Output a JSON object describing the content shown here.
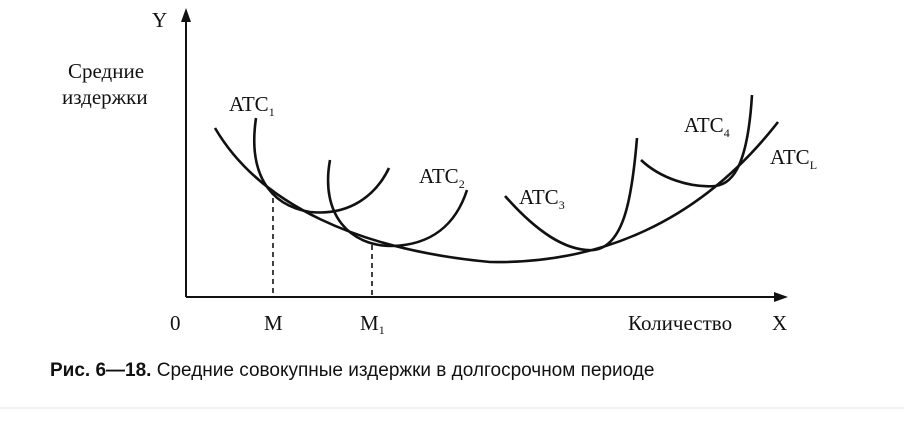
{
  "axes": {
    "y_label": "Y",
    "y_title_line1": "Средние",
    "y_title_line2": "издержки",
    "origin": "0",
    "x_title": "Количество",
    "x_label": "X"
  },
  "ticks": [
    {
      "label": "M"
    },
    {
      "label": "M",
      "sub": "1"
    }
  ],
  "curves": [
    {
      "label": "ATC",
      "sub": "1"
    },
    {
      "label": "ATC",
      "sub": "2"
    },
    {
      "label": "ATC",
      "sub": "3"
    },
    {
      "label": "ATC",
      "sub": "4"
    },
    {
      "label": "ATC",
      "sub": "L"
    }
  ],
  "caption": {
    "number": "Рис. 6—18.",
    "text": "Средние совокупные издержки в долгосрочном периоде"
  }
}
